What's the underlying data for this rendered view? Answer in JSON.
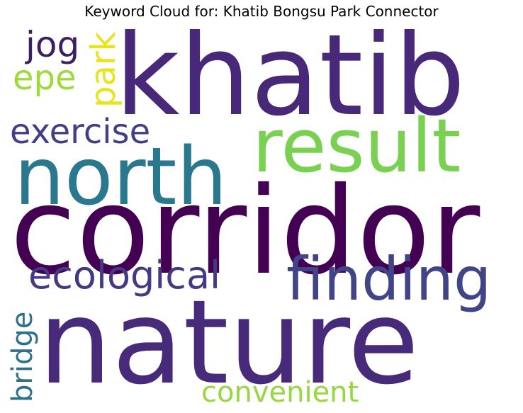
{
  "title": "Keyword Cloud for: Khatib Bongsu Park Connector",
  "words": [
    {
      "text": "khatib",
      "color": "#482878",
      "orientation": "horizontal"
    },
    {
      "text": "corridor",
      "color": "#440154",
      "orientation": "horizontal"
    },
    {
      "text": "nature",
      "color": "#472a7a",
      "orientation": "horizontal"
    },
    {
      "text": "north",
      "color": "#2a788e",
      "orientation": "horizontal"
    },
    {
      "text": "result",
      "color": "#7ad151",
      "orientation": "horizontal"
    },
    {
      "text": "finding",
      "color": "#414487",
      "orientation": "horizontal"
    },
    {
      "text": "ecological",
      "color": "#443a83",
      "orientation": "horizontal"
    },
    {
      "text": "exercise",
      "color": "#433e85",
      "orientation": "horizontal"
    },
    {
      "text": "jog",
      "color": "#3b1e63",
      "orientation": "horizontal"
    },
    {
      "text": "epe",
      "color": "#a0da39",
      "orientation": "horizontal"
    },
    {
      "text": "park",
      "color": "#e8e419",
      "orientation": "vertical"
    },
    {
      "text": "bridge",
      "color": "#2d708e",
      "orientation": "vertical"
    },
    {
      "text": "convenient",
      "color": "#95d840",
      "orientation": "horizontal"
    }
  ]
}
